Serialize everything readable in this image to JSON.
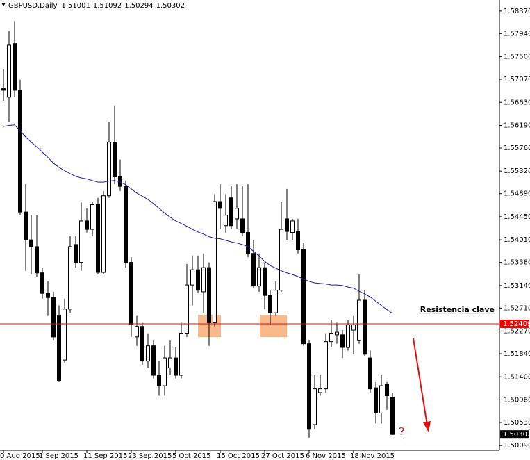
{
  "chart_data": {
    "type": "candlestick",
    "symbol": "GBPUSD,Daily",
    "categories": [
      "0 Aug 2015",
      null,
      null,
      null,
      null,
      null,
      null,
      "1 Sep 2015",
      null,
      null,
      null,
      null,
      null,
      null,
      null,
      "11 Sep 2015",
      null,
      null,
      null,
      null,
      null,
      null,
      null,
      "23 Sep 2015",
      null,
      null,
      null,
      null,
      null,
      null,
      null,
      "5 Oct 2015",
      null,
      null,
      null,
      null,
      null,
      null,
      null,
      "15 Oct 2015",
      null,
      null,
      null,
      null,
      null,
      null,
      null,
      "27 Oct 2015",
      null,
      null,
      null,
      null,
      null,
      null,
      null,
      "6 Nov 2015",
      null,
      null,
      null,
      null,
      null,
      null,
      null,
      "18 Nov 2015",
      null,
      null,
      null,
      null,
      null,
      null,
      null
    ],
    "open": [
      1.5689,
      1.5673,
      1.5775,
      1.5686,
      1.5454,
      1.5401,
      1.5388,
      1.5338,
      1.5299,
      1.5291,
      1.5256,
      1.5172,
      1.5269,
      1.5392,
      1.5358,
      1.5437,
      1.5421,
      1.5468,
      1.5339,
      1.5485,
      1.5587,
      1.5521,
      1.5503,
      1.5358,
      1.5216,
      1.5236,
      1.517,
      1.5199,
      1.5143,
      1.5123,
      1.5157,
      1.5176,
      1.5143,
      1.5223,
      1.5315,
      1.5344,
      1.5302,
      1.5348,
      1.5243,
      1.5474,
      1.5428,
      1.5481,
      1.5441,
      1.5441,
      1.5415,
      1.5375,
      1.5313,
      1.5348,
      1.5295,
      1.5262,
      1.5305,
      1.5441,
      1.5415,
      1.5417,
      1.5382,
      1.5203,
      1.5049,
      1.511,
      1.5117,
      1.5207,
      1.522,
      1.522,
      1.5196,
      1.5229,
      1.5209,
      1.5286,
      1.5176,
      1.5119,
      1.5071,
      1.5126,
      1.51001
    ],
    "high": [
      1.5726,
      1.5799,
      1.5818,
      1.5706,
      1.5507,
      1.5448,
      1.5448,
      1.5348,
      1.5322,
      1.5302,
      1.5276,
      1.5289,
      1.5408,
      1.5408,
      1.5472,
      1.5461,
      1.5474,
      1.5481,
      1.5494,
      1.5626,
      1.5657,
      1.5554,
      1.5514,
      1.5368,
      1.5256,
      1.5243,
      1.5223,
      1.5209,
      1.517,
      1.5199,
      1.5209,
      1.5196,
      1.5243,
      1.5355,
      1.5371,
      1.5371,
      1.5375,
      1.5358,
      1.5488,
      1.5507,
      1.5488,
      1.5503,
      1.5507,
      1.5503,
      1.5507,
      1.5401,
      1.5375,
      1.5358,
      1.5305,
      1.5322,
      1.5474,
      1.5498,
      1.5441,
      1.5441,
      1.5395,
      1.5209,
      1.5143,
      1.5143,
      1.5223,
      1.5249,
      1.5243,
      1.5229,
      1.5249,
      1.5256,
      1.5335,
      1.5305,
      1.519,
      1.513,
      1.5143,
      1.513,
      1.51092
    ],
    "low": [
      1.5666,
      1.5626,
      1.5673,
      1.5448,
      1.5342,
      1.5335,
      1.5331,
      1.5289,
      1.5256,
      1.5209,
      1.513,
      1.5167,
      1.5262,
      1.5348,
      1.5342,
      1.5415,
      1.5408,
      1.5335,
      1.5335,
      1.5481,
      1.5507,
      1.5494,
      1.5348,
      1.5216,
      1.5199,
      1.5163,
      1.5157,
      1.5137,
      1.5104,
      1.5104,
      1.5143,
      1.5137,
      1.5137,
      1.5216,
      1.5276,
      1.5299,
      1.5262,
      1.5199,
      1.5236,
      1.5421,
      1.5415,
      1.5421,
      1.5421,
      1.5408,
      1.5368,
      1.5309,
      1.5302,
      1.5269,
      1.5239,
      1.5256,
      1.5302,
      1.5401,
      1.5401,
      1.5375,
      1.5199,
      1.5024,
      1.504,
      1.5104,
      1.511,
      1.5196,
      1.5203,
      1.5176,
      1.519,
      1.5183,
      1.5203,
      1.518,
      1.511,
      1.5051,
      1.5051,
      1.5077,
      1.50294
    ],
    "close": [
      1.5686,
      1.5772,
      1.5686,
      1.5454,
      1.5401,
      1.5388,
      1.5338,
      1.5299,
      1.5291,
      1.5216,
      1.5133,
      1.5269,
      1.5388,
      1.5358,
      1.5437,
      1.5421,
      1.5468,
      1.5339,
      1.5485,
      1.5587,
      1.5521,
      1.5503,
      1.5358,
      1.5239,
      1.5236,
      1.517,
      1.5199,
      1.5143,
      1.5123,
      1.5176,
      1.5176,
      1.5143,
      1.5223,
      1.5315,
      1.5344,
      1.5305,
      1.5348,
      1.5243,
      1.5474,
      1.5461,
      1.5448,
      1.5428,
      1.5461,
      1.5415,
      1.5375,
      1.5313,
      1.5348,
      1.5295,
      1.5262,
      1.5305,
      1.5421,
      1.5417,
      1.5437,
      1.5382,
      1.5203,
      1.504,
      1.5117,
      1.5117,
      1.5207,
      1.5223,
      1.5225,
      1.5196,
      1.5239,
      1.5239,
      1.5286,
      1.5183,
      1.5117,
      1.5071,
      1.5123,
      1.5104,
      1.50302
    ],
    "up_color": "#ffffff",
    "down_color": "#000000",
    "ma": {
      "color": "#1a1aa8",
      "values": [
        1.5617,
        1.5619,
        1.562,
        1.5609,
        1.5597,
        1.5587,
        1.5578,
        1.5568,
        1.5558,
        1.5547,
        1.5539,
        1.5533,
        1.5527,
        1.5522,
        1.5519,
        1.5517,
        1.5514,
        1.5511,
        1.5511,
        1.5513,
        1.5514,
        1.5511,
        1.5506,
        1.5498,
        1.549,
        1.5484,
        1.5478,
        1.547,
        1.5461,
        1.5452,
        1.5444,
        1.5437,
        1.5432,
        1.5427,
        1.5421,
        1.5416,
        1.5412,
        1.5407,
        1.5404,
        1.5403,
        1.54,
        1.5397,
        1.5395,
        1.5392,
        1.5388,
        1.5379,
        1.537,
        1.536,
        1.5352,
        1.5347,
        1.5342,
        1.5338,
        1.5335,
        1.5331,
        1.5326,
        1.5322,
        1.5319,
        1.5318,
        1.5317,
        1.5315,
        1.5315,
        1.5314,
        1.5311,
        1.5309,
        1.5303,
        1.5298,
        1.5292,
        1.5284,
        1.5276,
        1.5268,
        1.5261
      ]
    },
    "ylim": [
      1.5,
      1.5858
    ],
    "yticks": [
      {
        "value": 1.5837,
        "label": "1.58370"
      },
      {
        "value": 1.5794,
        "label": "1.57940"
      },
      {
        "value": 1.575,
        "label": "1.57500"
      },
      {
        "value": 1.5707,
        "label": "1.57070"
      },
      {
        "value": 1.5663,
        "label": "1.56630"
      },
      {
        "value": 1.5619,
        "label": "1.56190"
      },
      {
        "value": 1.5576,
        "label": "1.55760"
      },
      {
        "value": 1.5532,
        "label": "1.55320"
      },
      {
        "value": 1.5489,
        "label": "1.54890"
      },
      {
        "value": 1.5445,
        "label": "1.54450"
      },
      {
        "value": 1.5401,
        "label": "1.54010"
      },
      {
        "value": 1.5358,
        "label": "1.53580"
      },
      {
        "value": 1.5314,
        "label": "1.53140"
      },
      {
        "value": 1.5271,
        "label": "1.52710"
      },
      {
        "value": 1.5227,
        "label": "1.52270"
      },
      {
        "value": 1.5184,
        "label": "1.51840"
      },
      {
        "value": 1.514,
        "label": "1.51400"
      },
      {
        "value": 1.5096,
        "label": "1.50960"
      },
      {
        "value": 1.5053,
        "label": "1.50530"
      },
      {
        "value": 1.5009,
        "label": "1.50090"
      }
    ],
    "hline": {
      "value": 1.52409,
      "color": "#ff0000"
    },
    "annotations": [
      {
        "text": "Resistencia clave"
      },
      {
        "text": "?"
      }
    ]
  }
}
